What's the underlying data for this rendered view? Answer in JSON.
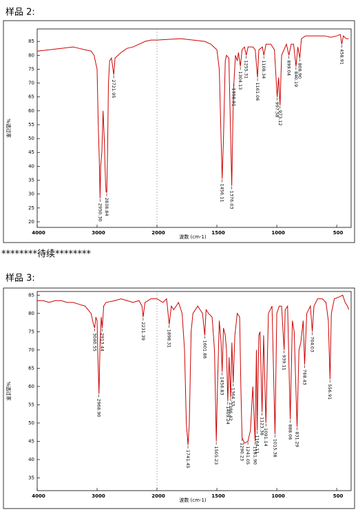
{
  "continued_text": "********待续********",
  "chart_data": [
    {
      "type": "line",
      "title": "样品 2:",
      "x_label": "波数 (cm-1)",
      "y_label": "%透过率",
      "color": "#cc0000",
      "xlim": [
        4000,
        380
      ],
      "x_break": 2000,
      "ylim": [
        18,
        89.5
      ],
      "xticks": [
        4000,
        3000,
        2000,
        1500,
        1000,
        500
      ],
      "yticks": [
        20,
        25,
        30,
        35,
        40,
        45,
        50,
        55,
        60,
        65,
        70,
        75,
        80,
        85
      ],
      "x": [
        4000,
        3800,
        3600,
        3400,
        3300,
        3200,
        3100,
        3050,
        3000,
        2980,
        2960,
        2950,
        2940,
        2920,
        2900,
        2880,
        2860,
        2850,
        2838,
        2825,
        2810,
        2790,
        2760,
        2721,
        2700,
        2650,
        2600,
        2500,
        2400,
        2300,
        2200,
        2100,
        2000,
        1800,
        1700,
        1600,
        1550,
        1500,
        1480,
        1465,
        1456,
        1445,
        1430,
        1420,
        1400,
        1390,
        1376,
        1365,
        1358,
        1345,
        1330,
        1320,
        1304,
        1290,
        1270,
        1255,
        1240,
        1200,
        1180,
        1161,
        1150,
        1120,
        1108,
        1090,
        1050,
        1020,
        997,
        985,
        973,
        960,
        940,
        920,
        899,
        880,
        860,
        840,
        825,
        808,
        795,
        760,
        700,
        600,
        550,
        500,
        470,
        458,
        445,
        420,
        400
      ],
      "values": [
        81.5,
        82,
        82.5,
        83,
        82.5,
        82,
        81.5,
        80,
        75,
        55,
        40,
        28.5,
        40,
        45,
        60,
        50,
        35,
        31,
        30.5,
        45,
        70,
        78,
        79,
        73,
        79,
        80,
        81,
        82.5,
        83,
        84,
        85,
        85.5,
        85.5,
        86,
        85.5,
        85,
        84,
        82,
        75,
        50,
        35.5,
        50,
        78,
        80,
        79,
        60,
        33,
        60,
        70,
        80,
        78,
        81,
        76,
        82,
        83,
        80,
        83,
        83,
        82,
        72,
        82,
        83,
        80,
        84,
        84,
        82,
        65,
        72,
        62,
        80,
        82,
        84,
        80,
        84,
        84,
        76,
        83,
        79,
        86,
        87,
        87,
        87,
        86.5,
        87,
        87.5,
        84,
        87,
        86,
        86
      ],
      "peak_x": [
        2950.3,
        2838.84,
        2721.95,
        1456.11,
        1376.03,
        1358.91,
        1304.13,
        1255.31,
        1161.06,
        1108.34,
        997.58,
        973.12,
        899.04,
        840.19,
        808.9,
        458.91
      ],
      "peak_labels": [
        "2950.30",
        "2838.84",
        "2721.95",
        "1456.11",
        "1376.03",
        "1358.91",
        "1304.13",
        "1255.31",
        "1161.06",
        "1108.34",
        "997.58",
        "973.12",
        "899.04",
        "840.19",
        "808.90",
        "458.91"
      ],
      "peak_y": [
        28.5,
        30.5,
        73,
        35.5,
        33,
        70,
        76,
        80,
        72,
        80,
        65,
        62,
        80,
        76,
        79,
        84
      ]
    },
    {
      "type": "line",
      "title": "样品 3:",
      "x_label": "波数 (cm-1)",
      "y_label": "%透过率",
      "color": "#cc0000",
      "xlim": [
        4000,
        380
      ],
      "x_break": 2000,
      "ylim": [
        31.5,
        86
      ],
      "xticks": [
        4000,
        3000,
        2000,
        1500,
        1000,
        500
      ],
      "yticks": [
        35,
        40,
        45,
        50,
        55,
        60,
        65,
        70,
        75,
        80,
        85
      ],
      "x": [
        4000,
        3900,
        3800,
        3700,
        3600,
        3500,
        3400,
        3300,
        3200,
        3100,
        3060,
        3040,
        3020,
        3000,
        2990,
        2968,
        2950,
        2930,
        2913,
        2890,
        2850,
        2700,
        2600,
        2500,
        2400,
        2300,
        2250,
        2231,
        2200,
        2100,
        2000,
        1950,
        1920,
        1898,
        1880,
        1860,
        1820,
        1790,
        1770,
        1755,
        1741,
        1730,
        1715,
        1700,
        1680,
        1660,
        1640,
        1620,
        1601,
        1590,
        1570,
        1540,
        1520,
        1505,
        1495,
        1480,
        1465,
        1456,
        1445,
        1430,
        1420,
        1409,
        1398,
        1386,
        1375,
        1364,
        1350,
        1330,
        1310,
        1300,
        1290,
        1270,
        1241,
        1220,
        1200,
        1181,
        1170,
        1164,
        1150,
        1140,
        1123,
        1110,
        1091,
        1070,
        1040,
        1015,
        1000,
        980,
        960,
        939,
        930,
        910,
        888,
        870,
        855,
        831,
        815,
        800,
        780,
        768,
        750,
        720,
        704,
        690,
        660,
        620,
        590,
        570,
        556,
        545,
        520,
        480,
        450,
        430,
        410,
        400
      ],
      "values": [
        83.5,
        83.5,
        83,
        83.5,
        83.5,
        83,
        83,
        82.5,
        82,
        80,
        77,
        76,
        79,
        78,
        70,
        58,
        72,
        79,
        76,
        82,
        83,
        83.5,
        84,
        83.5,
        83,
        83.5,
        82,
        79,
        83,
        84,
        84,
        83,
        84,
        77,
        82,
        81,
        83,
        80,
        70,
        50,
        44,
        50,
        75,
        80,
        81,
        82,
        81,
        80,
        74,
        81,
        80,
        79,
        70,
        45,
        60,
        78,
        72,
        64,
        76,
        74,
        70,
        56,
        68,
        57,
        72,
        61,
        74,
        80,
        79,
        60,
        46,
        44.5,
        45,
        48,
        60,
        45,
        70,
        48,
        74,
        75,
        53,
        74,
        50,
        80,
        82,
        47,
        80,
        82,
        82,
        70,
        81,
        82,
        51,
        78,
        75,
        49,
        70,
        72,
        78,
        66,
        80,
        82,
        75,
        82,
        84,
        84,
        83,
        78,
        62,
        80,
        84,
        84.5,
        85,
        83,
        82,
        81
      ],
      "peak_x": [
        3040.55,
        2968.9,
        2913.44,
        2231.39,
        1898.31,
        1741.45,
        1601.86,
        1505.23,
        1456.83,
        1409.24,
        1386.42,
        1364.33,
        1290.23,
        1241.05,
        1181.9,
        1164.11,
        1123.38,
        1091.14,
        1015.38,
        939.11,
        888.06,
        831.29,
        768.43,
        704.03,
        556.91
      ],
      "peak_labels": [
        "3040.55",
        "2968.90",
        "2913.44",
        "2231.39",
        "1898.31",
        "1741.45",
        "1601.86",
        "1505.23",
        "1456.83",
        "1409.24",
        "1386.42",
        "1364.33",
        "1290.23",
        "1241.05",
        "1181.90",
        "1164.11",
        "1123.38",
        "1091.14",
        "1015.38",
        "939.11",
        "888.06",
        "831.29",
        "768.43",
        "704.03",
        "556.91"
      ],
      "peak_y": [
        76,
        58,
        76,
        79,
        77,
        44,
        74,
        45,
        64,
        56,
        57,
        61,
        46,
        45,
        45,
        48,
        53,
        50,
        47,
        70,
        51,
        49,
        66,
        75,
        62
      ]
    }
  ]
}
